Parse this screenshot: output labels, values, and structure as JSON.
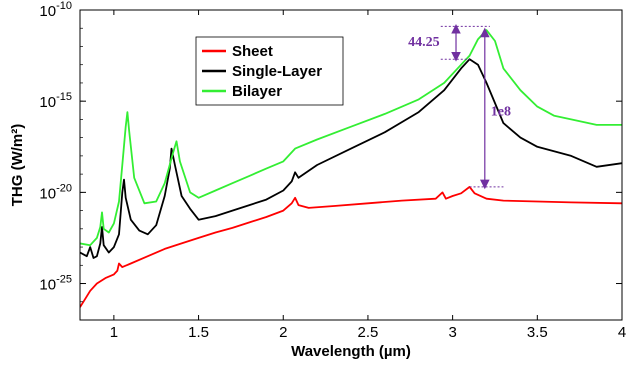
{
  "chart_data": {
    "type": "line",
    "title": "",
    "xlabel": "Wavelength (µm)",
    "ylabel": "THG (W/m²)",
    "xlim": [
      0.8,
      4.0
    ],
    "ylim_log10": [
      -27,
      -10
    ],
    "yscale": "log",
    "grid": false,
    "legend_position": "upper-left-center",
    "x_ticks": [
      {
        "v": 1.0,
        "label": "1"
      },
      {
        "v": 1.5,
        "label": "1.5"
      },
      {
        "v": 2.0,
        "label": "2"
      },
      {
        "v": 2.5,
        "label": "2.5"
      },
      {
        "v": 3.0,
        "label": "3"
      },
      {
        "v": 3.5,
        "label": "3.5"
      },
      {
        "v": 4.0,
        "label": "4"
      }
    ],
    "y_ticks": [
      {
        "exp": -10,
        "base": "10",
        "sup": "-10"
      },
      {
        "exp": -15,
        "base": "10",
        "sup": "-15"
      },
      {
        "exp": -20,
        "base": "10",
        "sup": "-20"
      },
      {
        "exp": -25,
        "base": "10",
        "sup": "-25"
      }
    ],
    "series": [
      {
        "name": "Sheet",
        "color": "#ff0000",
        "log10_y": [
          [
            0.8,
            -26.3
          ],
          [
            0.82,
            -26.0
          ],
          [
            0.86,
            -25.4
          ],
          [
            0.9,
            -25.0
          ],
          [
            0.95,
            -24.7
          ],
          [
            1.0,
            -24.5
          ],
          [
            1.02,
            -24.3
          ],
          [
            1.03,
            -23.9
          ],
          [
            1.05,
            -24.1
          ],
          [
            1.1,
            -23.9
          ],
          [
            1.2,
            -23.5
          ],
          [
            1.3,
            -23.1
          ],
          [
            1.4,
            -22.8
          ],
          [
            1.5,
            -22.5
          ],
          [
            1.6,
            -22.2
          ],
          [
            1.7,
            -21.95
          ],
          [
            1.8,
            -21.65
          ],
          [
            1.9,
            -21.35
          ],
          [
            2.0,
            -21.0
          ],
          [
            2.05,
            -20.6
          ],
          [
            2.07,
            -20.3
          ],
          [
            2.09,
            -20.7
          ],
          [
            2.15,
            -20.85
          ],
          [
            2.3,
            -20.75
          ],
          [
            2.5,
            -20.6
          ],
          [
            2.7,
            -20.45
          ],
          [
            2.9,
            -20.35
          ],
          [
            2.94,
            -20.0
          ],
          [
            2.96,
            -20.35
          ],
          [
            3.0,
            -20.2
          ],
          [
            3.05,
            -20.05
          ],
          [
            3.1,
            -19.7
          ],
          [
            3.13,
            -20.05
          ],
          [
            3.2,
            -20.35
          ],
          [
            3.3,
            -20.45
          ],
          [
            3.5,
            -20.5
          ],
          [
            3.7,
            -20.55
          ],
          [
            4.0,
            -20.6
          ]
        ]
      },
      {
        "name": "Single-Layer",
        "color": "#000000",
        "log10_y": [
          [
            0.8,
            -23.3
          ],
          [
            0.84,
            -23.5
          ],
          [
            0.86,
            -23.0
          ],
          [
            0.88,
            -23.6
          ],
          [
            0.9,
            -23.5
          ],
          [
            0.92,
            -22.8
          ],
          [
            0.93,
            -21.9
          ],
          [
            0.94,
            -22.9
          ],
          [
            0.97,
            -23.3
          ],
          [
            1.0,
            -23.0
          ],
          [
            1.03,
            -22.3
          ],
          [
            1.05,
            -20.0
          ],
          [
            1.06,
            -19.3
          ],
          [
            1.07,
            -20.3
          ],
          [
            1.1,
            -21.5
          ],
          [
            1.15,
            -22.1
          ],
          [
            1.2,
            -22.3
          ],
          [
            1.25,
            -21.8
          ],
          [
            1.3,
            -20.2
          ],
          [
            1.33,
            -18.7
          ],
          [
            1.34,
            -17.6
          ],
          [
            1.36,
            -18.5
          ],
          [
            1.4,
            -20.2
          ],
          [
            1.45,
            -20.9
          ],
          [
            1.5,
            -21.5
          ],
          [
            1.6,
            -21.3
          ],
          [
            1.7,
            -21.0
          ],
          [
            1.8,
            -20.7
          ],
          [
            1.9,
            -20.4
          ],
          [
            2.0,
            -19.9
          ],
          [
            2.05,
            -19.4
          ],
          [
            2.07,
            -18.9
          ],
          [
            2.09,
            -19.2
          ],
          [
            2.2,
            -18.5
          ],
          [
            2.4,
            -17.6
          ],
          [
            2.6,
            -16.7
          ],
          [
            2.8,
            -15.6
          ],
          [
            2.95,
            -14.4
          ],
          [
            3.05,
            -13.2
          ],
          [
            3.1,
            -12.7
          ],
          [
            3.15,
            -13.0
          ],
          [
            3.2,
            -14.0
          ],
          [
            3.3,
            -16.2
          ],
          [
            3.4,
            -17.0
          ],
          [
            3.5,
            -17.5
          ],
          [
            3.7,
            -18.0
          ],
          [
            3.85,
            -18.6
          ],
          [
            4.0,
            -18.4
          ]
        ]
      },
      {
        "name": "Bilayer",
        "color": "#33ee33",
        "log10_y": [
          [
            0.8,
            -22.8
          ],
          [
            0.86,
            -22.9
          ],
          [
            0.9,
            -22.5
          ],
          [
            0.92,
            -21.9
          ],
          [
            0.93,
            -21.1
          ],
          [
            0.94,
            -22.0
          ],
          [
            0.97,
            -22.2
          ],
          [
            1.0,
            -21.7
          ],
          [
            1.03,
            -20.5
          ],
          [
            1.05,
            -18.5
          ],
          [
            1.07,
            -16.4
          ],
          [
            1.08,
            -15.6
          ],
          [
            1.09,
            -16.6
          ],
          [
            1.12,
            -19.2
          ],
          [
            1.18,
            -20.6
          ],
          [
            1.25,
            -20.5
          ],
          [
            1.3,
            -19.5
          ],
          [
            1.35,
            -17.8
          ],
          [
            1.37,
            -17.2
          ],
          [
            1.39,
            -18.3
          ],
          [
            1.45,
            -20.0
          ],
          [
            1.5,
            -20.3
          ],
          [
            1.6,
            -19.9
          ],
          [
            1.7,
            -19.5
          ],
          [
            1.8,
            -19.1
          ],
          [
            1.9,
            -18.7
          ],
          [
            2.0,
            -18.3
          ],
          [
            2.07,
            -17.6
          ],
          [
            2.2,
            -17.1
          ],
          [
            2.4,
            -16.4
          ],
          [
            2.6,
            -15.7
          ],
          [
            2.8,
            -14.9
          ],
          [
            2.95,
            -14.0
          ],
          [
            3.05,
            -13.0
          ],
          [
            3.1,
            -12.5
          ],
          [
            3.15,
            -11.6
          ],
          [
            3.2,
            -11.1
          ],
          [
            3.25,
            -11.7
          ],
          [
            3.3,
            -13.2
          ],
          [
            3.4,
            -14.4
          ],
          [
            3.5,
            -15.3
          ],
          [
            3.6,
            -15.8
          ],
          [
            3.7,
            -16.0
          ],
          [
            3.85,
            -16.3
          ],
          [
            4.0,
            -16.3
          ]
        ]
      }
    ],
    "annotations": [
      {
        "label": "44.25",
        "type": "horizontal-arrow",
        "x_from": 3.0,
        "x_to": 3.2,
        "log10_y": -11.7,
        "label_x": 2.83
      },
      {
        "label": "1e8",
        "type": "vertical-arrow",
        "x": 3.19,
        "log10_from": -11.1,
        "log10_to": -19.7,
        "label_log10": -15.5
      }
    ]
  }
}
